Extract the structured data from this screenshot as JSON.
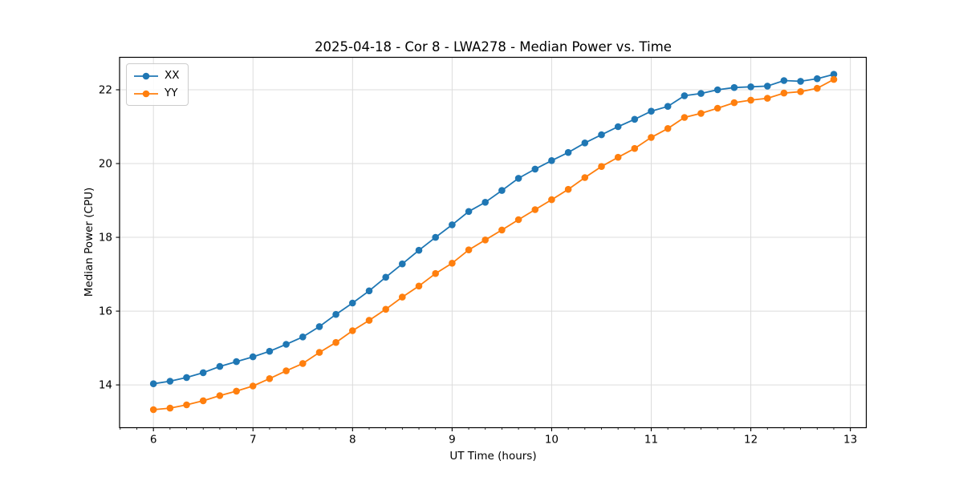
{
  "chart_data": {
    "type": "line",
    "title": "2025-04-18 - Cor 8 - LWA278 - Median Power vs. Time",
    "xlabel": "UT Time (hours)",
    "ylabel": "Median Power (CPU)",
    "xlim": [
      5.66,
      13.16
    ],
    "ylim": [
      12.84,
      22.88
    ],
    "xticks": [
      6,
      7,
      8,
      9,
      10,
      11,
      12,
      13
    ],
    "yticks": [
      14,
      16,
      18,
      20,
      22
    ],
    "x_minor_step_hours": 0.1666667,
    "grid": true,
    "grid_color": "#dcdcdc",
    "legend_position": "upper-left",
    "x_start": 6.0,
    "x_step": 0.1666667,
    "marker": "o",
    "series": [
      {
        "name": "XX",
        "color": "#1f77b4",
        "values": [
          14.03,
          14.1,
          14.2,
          14.33,
          14.5,
          14.63,
          14.76,
          14.91,
          15.1,
          15.3,
          15.58,
          15.91,
          16.22,
          16.55,
          16.92,
          17.28,
          17.65,
          18.0,
          18.34,
          18.7,
          18.95,
          19.27,
          19.6,
          19.85,
          20.08,
          20.3,
          20.56,
          20.78,
          21.0,
          21.2,
          21.42,
          21.55,
          21.84,
          21.9,
          22.0,
          22.06,
          22.08,
          22.1,
          22.25,
          22.23,
          22.3,
          22.42
        ]
      },
      {
        "name": "YY",
        "color": "#ff7f0e",
        "values": [
          13.33,
          13.37,
          13.46,
          13.57,
          13.71,
          13.83,
          13.97,
          14.17,
          14.38,
          14.58,
          14.88,
          15.15,
          15.47,
          15.75,
          16.05,
          16.38,
          16.68,
          17.02,
          17.3,
          17.66,
          17.93,
          18.2,
          18.48,
          18.75,
          19.02,
          19.3,
          19.62,
          19.92,
          20.17,
          20.41,
          20.71,
          20.95,
          21.25,
          21.36,
          21.5,
          21.65,
          21.72,
          21.77,
          21.91,
          21.95,
          22.04,
          22.28
        ]
      }
    ]
  }
}
